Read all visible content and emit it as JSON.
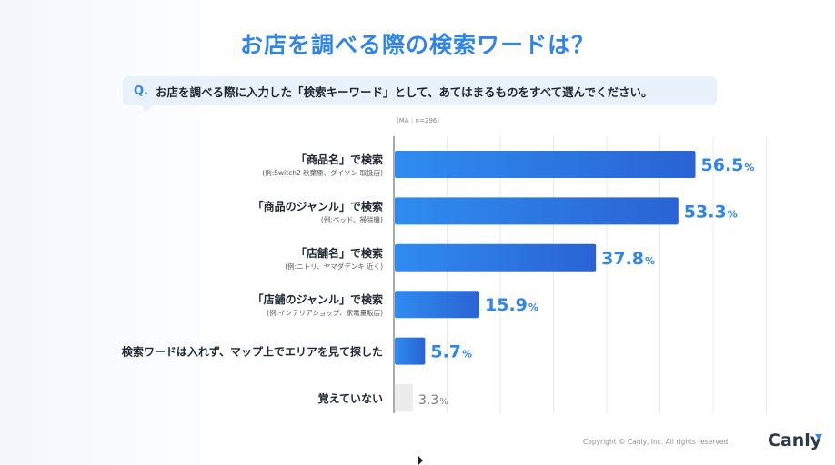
{
  "slide": {
    "title": "お店を調べる際の検索ワードは？"
  },
  "question": {
    "prefix": "Q.",
    "text": "お店を調べる際に入力した「検索キーワード」として、あてはまるものをすべて選んでください。"
  },
  "note": "(MA｜n=296)",
  "footer": {
    "copyright": "Copyright © Canly, Inc. All rights reserved.",
    "brand": "Canly"
  },
  "colors": {
    "accent": "#2f86e8",
    "bar_start": "#2f8cf0",
    "bar_end": "#2a63d4",
    "bar_muted": "#ececec",
    "value_muted": "#7a7a7a"
  },
  "chart_data": {
    "type": "bar",
    "orientation": "horizontal",
    "unit": "%",
    "xlim": [
      0,
      70
    ],
    "grid": true,
    "categories": [
      {
        "label": "「商品名」で検索",
        "example": "(例:Switch2 秋葉原、ダイソン 取扱店)",
        "value": 56.5
      },
      {
        "label": "「商品のジャンル」で検索",
        "example": "(例:ベッド、掃除機)",
        "value": 53.3
      },
      {
        "label": "「店舗名」で検索",
        "example": "(例:ニトリ、ヤマダデンキ 近く)",
        "value": 37.8
      },
      {
        "label": "「店舗のジャンル」で検索",
        "example": "(例:インテリアショップ、家電量販店)",
        "value": 15.9
      },
      {
        "label": "検索ワードは入れず、マップ上でエリアを見て探した",
        "example": "",
        "value": 5.7
      },
      {
        "label": "覚えていない",
        "example": "",
        "value": 3.3,
        "muted": true
      }
    ],
    "value_labels": [
      "56.5",
      "53.3",
      "37.8",
      "15.9",
      "5.7",
      "3.3"
    ]
  }
}
